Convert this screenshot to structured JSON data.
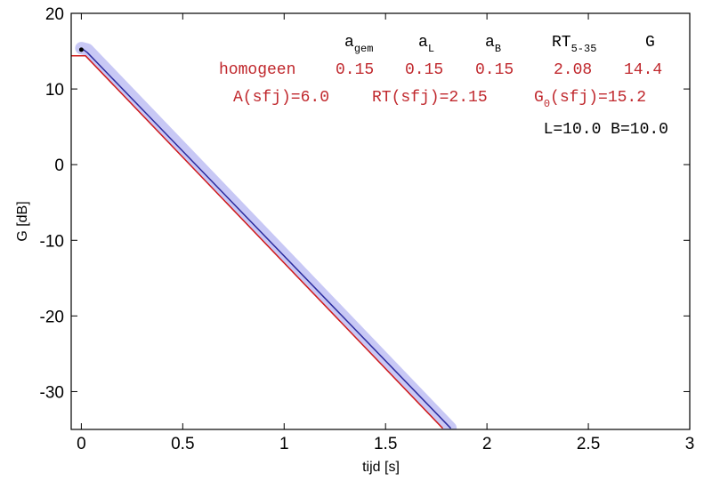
{
  "chart_data": {
    "type": "line",
    "title": "",
    "xlabel": "tijd  [s]",
    "ylabel": "G  [dB]",
    "xlim": [
      -0.05,
      3
    ],
    "ylim": [
      -35,
      20
    ],
    "xticks": [
      0,
      0.5,
      1,
      1.5,
      2,
      2.5,
      3
    ],
    "yticks": [
      -30,
      -20,
      -10,
      0,
      10,
      20
    ],
    "xtick_labels": [
      "0",
      "0.5",
      "1",
      "1.5",
      "2",
      "2.5",
      "3"
    ],
    "ytick_labels": [
      "-30",
      "-20",
      "-10",
      "0",
      "10",
      "20"
    ],
    "grid": false,
    "series": [
      {
        "color": "#c8c8f5",
        "x": [
          0,
          0.03,
          1.82
        ],
        "y": [
          15.4,
          15.2,
          -34.8
        ]
      },
      {
        "color": "#2b2b9e",
        "x": [
          0.01,
          0.03,
          1.82
        ],
        "y": [
          15.2,
          14.8,
          -34.8
        ]
      },
      {
        "color": "#d01a1a",
        "x": [
          -0.05,
          0.02,
          1.78
        ],
        "y": [
          14.4,
          14.4,
          -34.8
        ]
      }
    ],
    "point": {
      "x": 0.0,
      "y": 15.2,
      "color": "#000000"
    },
    "annotations": {
      "header": {
        "color": "#000000",
        "a_gem": {
          "main": "a",
          "sub": "gem"
        },
        "a_L": {
          "main": "a",
          "sub": "L"
        },
        "a_B": {
          "main": "a",
          "sub": "B"
        },
        "rt": {
          "main": "RT",
          "sub": "5-35"
        },
        "g": "G"
      },
      "row1": {
        "color": "#c0282d",
        "label": "homogeen",
        "a_gem": "0.15",
        "a_L": "0.15",
        "a_B": "0.15",
        "rt": "2.08",
        "g": "14.4"
      },
      "row2": {
        "color": "#c0282d",
        "a": "A(sfj)=6.0",
        "rt": "RT(sfj)=2.15",
        "g0_main": "G",
        "g0_sub": "0",
        "g0_rest": "(sfj)=15.2"
      },
      "row3": {
        "color": "#000000",
        "text": "L=10.0 B=10.0"
      }
    }
  }
}
